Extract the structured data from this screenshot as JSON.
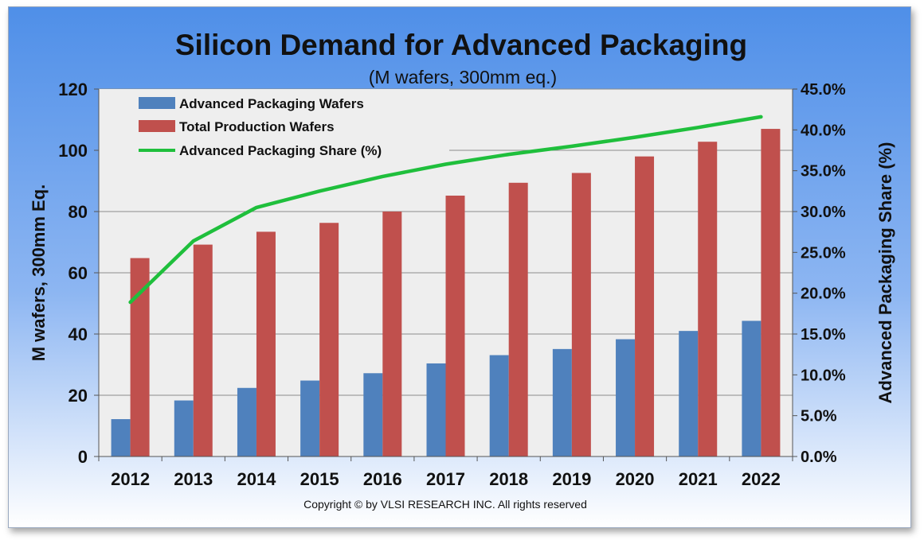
{
  "chart_data": {
    "type": "bar",
    "title": "Silicon Demand for Advanced Packaging",
    "subtitle": "(M wafers, 300mm eq.)",
    "categories": [
      "2012",
      "2013",
      "2014",
      "2015",
      "2016",
      "2017",
      "2018",
      "2019",
      "2020",
      "2021",
      "2022"
    ],
    "series": [
      {
        "name": "Advanced Packaging Wafers",
        "type": "bar",
        "axis": "left",
        "color": "#4f81bd",
        "values": [
          12.2,
          18.3,
          22.4,
          24.8,
          27.2,
          30.4,
          33.1,
          35.1,
          38.3,
          41.0,
          44.3
        ]
      },
      {
        "name": "Total Production Wafers",
        "type": "bar",
        "axis": "left",
        "color": "#c0504d",
        "values": [
          64.8,
          69.2,
          73.4,
          76.3,
          80.0,
          85.2,
          89.4,
          92.6,
          98.0,
          102.8,
          107.0
        ]
      },
      {
        "name": "Advanced Packaging Share (%)",
        "type": "line",
        "axis": "right",
        "color": "#1fbf3c",
        "values": [
          18.9,
          26.4,
          30.5,
          32.5,
          34.3,
          35.8,
          37.0,
          38.0,
          39.1,
          40.3,
          41.6
        ]
      }
    ],
    "ylabel": "M wafers, 300mm Eq.",
    "ylim": [
      0,
      120
    ],
    "yticks": [
      "0",
      "20",
      "40",
      "60",
      "80",
      "100",
      "120"
    ],
    "y2label": "Advanced Packaging Share (%)",
    "y2lim": [
      0,
      45
    ],
    "y2ticks": [
      "0.0%",
      "5.0%",
      "10.0%",
      "15.0%",
      "20.0%",
      "25.0%",
      "30.0%",
      "35.0%",
      "40.0%",
      "45.0%"
    ],
    "grid": true,
    "legend": "top-left"
  },
  "copyright": "Copyright © by VLSI RESEARCH  INC. All rights reserved",
  "colors": {
    "frame_bg": "#6fa0ee",
    "plot_bg": "#eeeeee",
    "grid": "#8c8c8c",
    "bar_blue": "#4f81bd",
    "bar_red": "#c0504d",
    "line_green": "#1fbf3c"
  }
}
